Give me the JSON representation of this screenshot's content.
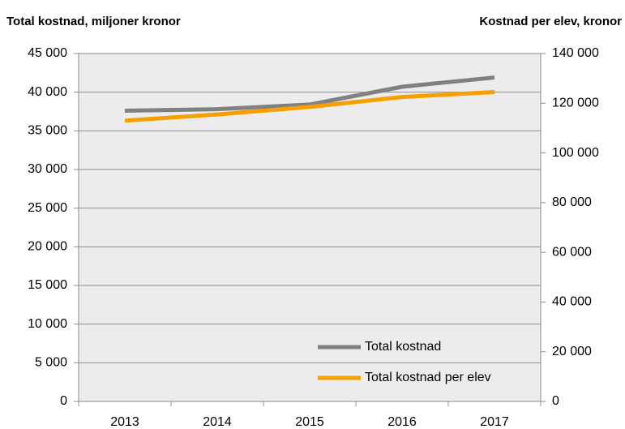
{
  "chart_data": {
    "type": "line",
    "y_axis_title": "Total kostnad, miljoner kronor",
    "y2_axis_title": "Kostnad per elev, kronor",
    "categories": [
      "2013",
      "2014",
      "2015",
      "2016",
      "2017"
    ],
    "series": [
      {
        "name": "Total kostnad",
        "color": "#808080",
        "values": [
          37600,
          37800,
          38400,
          40700,
          41900
        ]
      },
      {
        "name": "Total kostnad per elev",
        "color": "#f5a000",
        "axis": "y2",
        "values": [
          113000,
          115500,
          118500,
          122500,
          124500
        ]
      }
    ],
    "ylim": [
      0,
      45000
    ],
    "yticks": [
      0,
      {
        "value": 5000,
        "label": "5 000"
      },
      {
        "value": 10000,
        "label": "10 000"
      },
      {
        "value": 15000,
        "label": "15 000"
      },
      {
        "value": 20000,
        "label": "20 000"
      },
      {
        "value": 25000,
        "label": "25 000"
      },
      {
        "value": 30000,
        "label": "30 000"
      },
      {
        "value": 35000,
        "label": "35 000"
      },
      {
        "value": 40000,
        "label": "40 000"
      },
      {
        "value": 45000,
        "label": "45 000"
      }
    ],
    "y2lim": [
      0,
      140000
    ],
    "y2ticks": [
      0,
      {
        "value": 20000,
        "label": "20 000"
      },
      {
        "value": 40000,
        "label": "40 000"
      },
      {
        "value": 60000,
        "label": "60 000"
      },
      {
        "value": 80000,
        "label": "80 000"
      },
      {
        "value": 100000,
        "label": "100 000"
      },
      {
        "value": 120000,
        "label": "120 000"
      },
      {
        "value": 140000,
        "label": "140 000"
      }
    ],
    "grid": true,
    "legend": "lower right",
    "plot_background": "#ececec"
  }
}
